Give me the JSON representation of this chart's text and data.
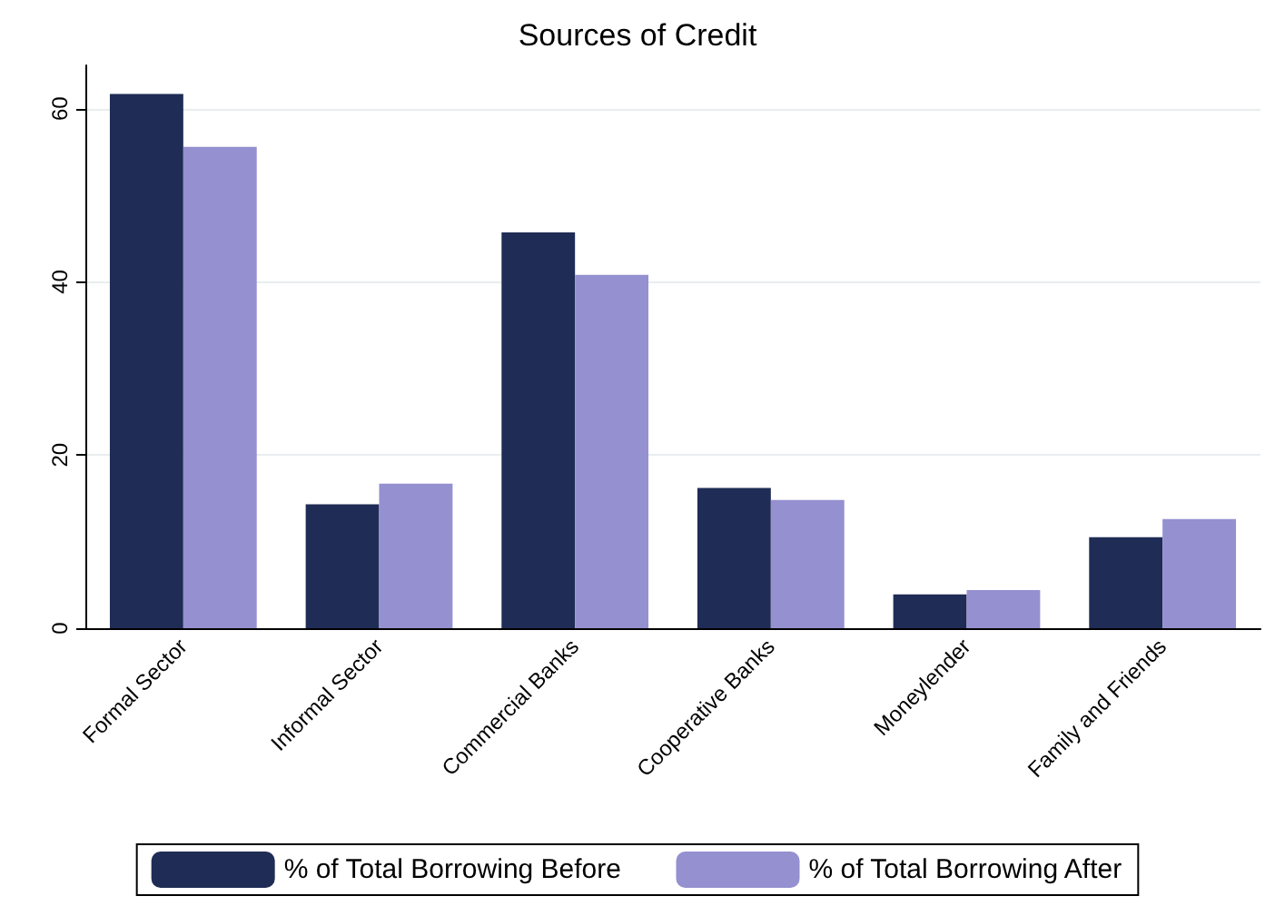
{
  "chart_data": {
    "type": "bar",
    "title": "Sources of Credit",
    "categories": [
      "Formal Sector",
      "Informal Sector",
      "Commercial Banks",
      "Cooperative Banks",
      "Moneylender",
      "Family and Friends"
    ],
    "series": [
      {
        "name": "% of Total Borrowing Before",
        "color": "#1f2c55",
        "values": [
          61.7,
          14.3,
          45.7,
          16.2,
          3.9,
          10.5
        ]
      },
      {
        "name": "% of Total Borrowing After",
        "color": "#9590d0",
        "values": [
          55.6,
          16.7,
          40.8,
          14.8,
          4.4,
          12.6
        ]
      }
    ],
    "ylim": [
      0,
      65
    ],
    "yticks": [
      0,
      20,
      40,
      60
    ],
    "grid": "y",
    "legend": "bottom"
  }
}
